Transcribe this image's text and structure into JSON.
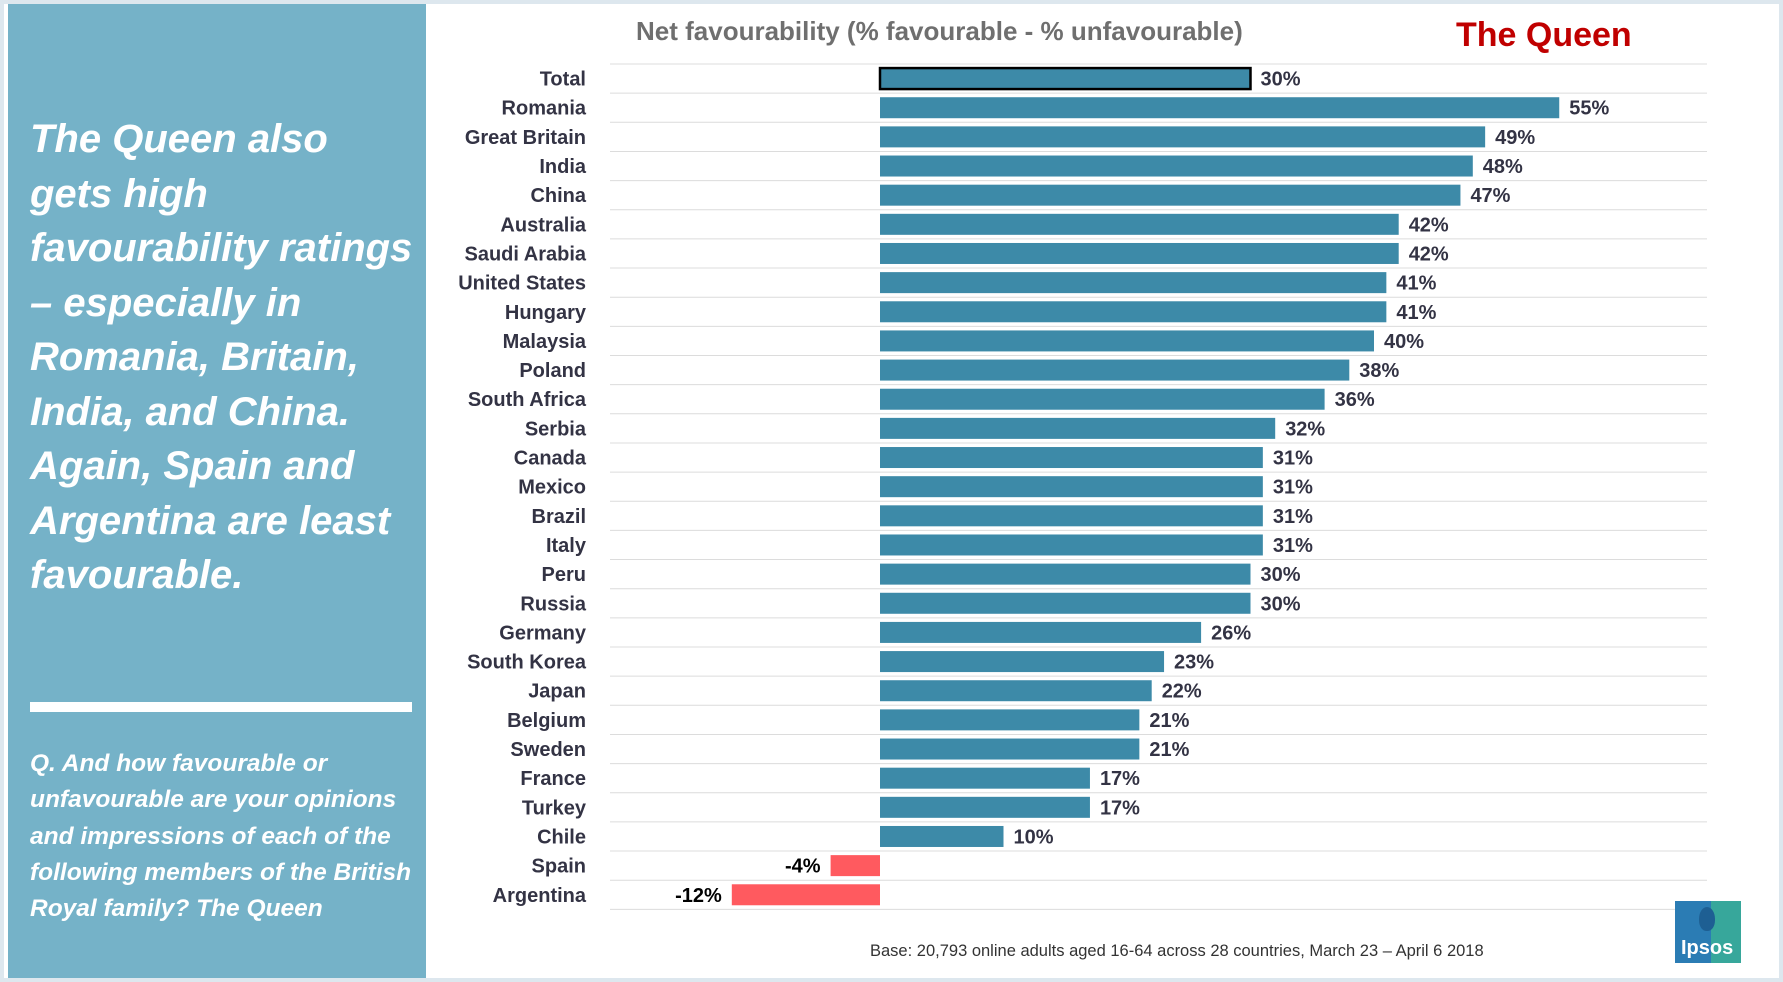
{
  "panel": {
    "headline": "The Queen also gets high favourability ratings – especially in Romania, Britain, India, and China.  Again, Spain and Argentina are least favourable.",
    "question": "Q. And how favourable or unfavourable are your opinions and impressions of each of the following members of the British Royal family? The Queen"
  },
  "header": {
    "title": "Net favourability (% favourable - % unfavourable)",
    "subject": "The Queen"
  },
  "footnote": "Base: 20,793 online adults aged 16-64 across 28 countries,  March 23 – April 6 2018",
  "logo_text": "Ipsos",
  "colors": {
    "positive": "#3d8aa8",
    "negative": "#ff5a5f",
    "highlight_border": "#000000",
    "panel": "#75b2c8",
    "subject": "#c00000"
  },
  "chart_data": {
    "type": "bar",
    "orientation": "horizontal",
    "title": "Net favourability (% favourable - % unfavourable)",
    "highlighted_category": "Total",
    "categories": [
      "Total",
      "Romania",
      "Great Britain",
      "India",
      "China",
      "Australia",
      "Saudi Arabia",
      "United States",
      "Hungary",
      "Malaysia",
      "Poland",
      "South Africa",
      "Serbia",
      "Canada",
      "Mexico",
      "Brazil",
      "Italy",
      "Peru",
      "Russia",
      "Germany",
      "South Korea",
      "Japan",
      "Belgium",
      "Sweden",
      "France",
      "Turkey",
      "Chile",
      "Spain",
      "Argentina"
    ],
    "values": [
      30,
      55,
      49,
      48,
      47,
      42,
      42,
      41,
      41,
      40,
      38,
      36,
      32,
      31,
      31,
      31,
      31,
      30,
      30,
      26,
      23,
      22,
      21,
      21,
      17,
      17,
      10,
      -4,
      -12
    ],
    "labels": [
      "30%",
      "55%",
      "49%",
      "48%",
      "47%",
      "42%",
      "42%",
      "41%",
      "41%",
      "40%",
      "38%",
      "36%",
      "32%",
      "31%",
      "31%",
      "31%",
      "31%",
      "30%",
      "30%",
      "26%",
      "23%",
      "22%",
      "21%",
      "21%",
      "17%",
      "17%",
      "10%",
      "-4%",
      "-12%"
    ],
    "xlim": [
      -20,
      60
    ],
    "grid": true
  }
}
